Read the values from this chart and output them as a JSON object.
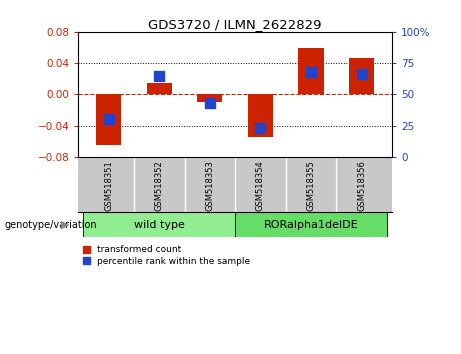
{
  "title": "GDS3720 / ILMN_2622829",
  "categories": [
    "GSM518351",
    "GSM518352",
    "GSM518353",
    "GSM518354",
    "GSM518355",
    "GSM518356"
  ],
  "red_values": [
    -0.065,
    0.015,
    -0.01,
    -0.055,
    0.06,
    0.046
  ],
  "blue_percentiles": [
    30,
    65,
    43,
    23,
    68,
    66
  ],
  "ylim_left": [
    -0.08,
    0.08
  ],
  "ylim_right": [
    0,
    100
  ],
  "yticks_left": [
    -0.08,
    -0.04,
    0,
    0.04,
    0.08
  ],
  "yticks_right": [
    0,
    25,
    50,
    75,
    100
  ],
  "groups": [
    {
      "label": "wild type",
      "indices": [
        0,
        1,
        2
      ],
      "color": "#90EE90"
    },
    {
      "label": "RORalpha1delDE",
      "indices": [
        3,
        4,
        5
      ],
      "color": "#66DD66"
    }
  ],
  "bar_color": "#CC2200",
  "blue_color": "#2244CC",
  "left_tick_color": "#CC2200",
  "right_tick_color": "#2244CC",
  "hline_color": "#CC2200",
  "bg_color": "#FFFFFF",
  "plot_bg_color": "#FFFFFF",
  "grid_color": "#000000",
  "legend_red_label": "transformed count",
  "legend_blue_label": "percentile rank within the sample",
  "genotype_label": "genotype/variation",
  "bar_width": 0.5,
  "blue_square_size": 55,
  "label_panel_color": "#C8C8C8",
  "group_panel_color_1": "#90EE90",
  "group_panel_color_2": "#66DD66"
}
